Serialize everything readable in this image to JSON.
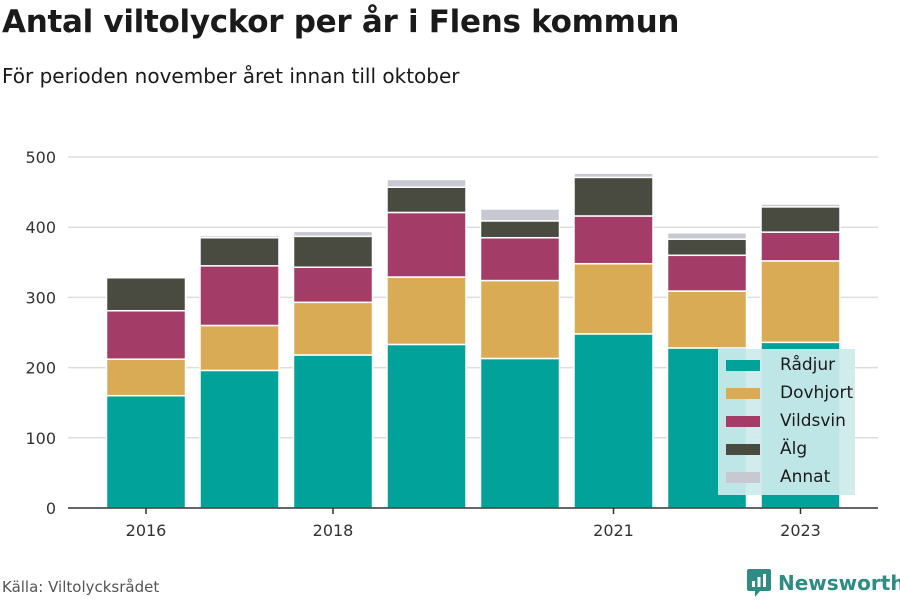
{
  "title": "Antal viltolyckor per år i Flens kommun",
  "subtitle": "För perioden november året innan till oktober",
  "source": "Källa: Viltolycksrådet",
  "brand": {
    "name": "Newsworthy",
    "icon": "newsworthy-logo-icon",
    "color": "#2e8c84"
  },
  "chart_data": {
    "type": "bar",
    "stacked": true,
    "categories": [
      "2016",
      "2017",
      "2018",
      "2019",
      "2020",
      "2021",
      "2022",
      "2023"
    ],
    "x_tick_labels": [
      "2016",
      "",
      "2018",
      "",
      "",
      "2021",
      "",
      "2023"
    ],
    "series": [
      {
        "name": "Rådjur",
        "color": "#00a29a",
        "values": [
          160,
          196,
          218,
          233,
          213,
          248,
          228,
          236
        ]
      },
      {
        "name": "Dovhjort",
        "color": "#d9ab55",
        "values": [
          52,
          64,
          75,
          96,
          111,
          100,
          81,
          116
        ]
      },
      {
        "name": "Vildsvin",
        "color": "#a33d68",
        "values": [
          69,
          85,
          50,
          92,
          61,
          68,
          51,
          41
        ]
      },
      {
        "name": "Älg",
        "color": "#4a4b40",
        "values": [
          47,
          40,
          44,
          36,
          24,
          55,
          23,
          36
        ]
      },
      {
        "name": "Annat",
        "color": "#c7c8d2",
        "values": [
          0,
          3,
          7,
          11,
          17,
          6,
          9,
          4
        ]
      }
    ],
    "ylim": [
      0,
      500
    ],
    "y_ticks": [
      0,
      100,
      200,
      300,
      400,
      500
    ],
    "grid": true,
    "legend_position": "bottom-right",
    "xlabel": "",
    "ylabel": ""
  }
}
